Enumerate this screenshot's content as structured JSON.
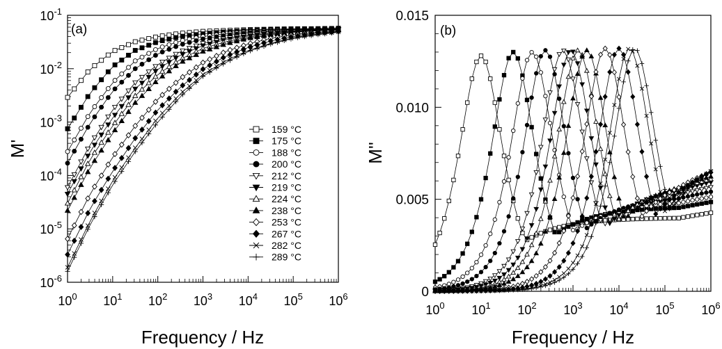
{
  "chart_data": [
    {
      "panel_label": "(a)",
      "type": "line",
      "title": "",
      "xlabel": "Frequency / Hz",
      "ylabel": "M'",
      "xscale": "log",
      "yscale": "log",
      "xlim": [
        1,
        1000000
      ],
      "ylim": [
        1e-06,
        0.1
      ],
      "x_ticks": [
        {
          "value": 1,
          "base": "10",
          "exp": "0"
        },
        {
          "value": 10,
          "base": "10",
          "exp": "1"
        },
        {
          "value": 100,
          "base": "10",
          "exp": "2"
        },
        {
          "value": 1000,
          "base": "10",
          "exp": "3"
        },
        {
          "value": 10000,
          "base": "10",
          "exp": "4"
        },
        {
          "value": 100000,
          "base": "10",
          "exp": "5"
        },
        {
          "value": 1000000,
          "base": "10",
          "exp": "6"
        }
      ],
      "y_ticks": [
        {
          "value": 1e-06,
          "base": "10",
          "exp": "-6"
        },
        {
          "value": 1e-05,
          "base": "10",
          "exp": "-5"
        },
        {
          "value": 0.0001,
          "base": "10",
          "exp": "-4"
        },
        {
          "value": 0.001,
          "base": "10",
          "exp": "-3"
        },
        {
          "value": 0.01,
          "base": "10",
          "exp": "-2"
        },
        {
          "value": 0.1,
          "base": "10",
          "exp": "-1"
        }
      ],
      "legend_position": "right",
      "x": [
        1,
        3.16,
        10,
        31.6,
        100,
        316,
        1000,
        3162,
        10000,
        31623,
        100000,
        316228,
        1000000
      ],
      "series": [
        {
          "name": "159 °C",
          "marker": "square-open",
          "values": [
            0.0029,
            0.0098,
            0.021,
            0.032,
            0.04,
            0.046,
            0.05,
            0.052,
            0.054,
            0.055,
            0.056,
            0.056,
            0.057
          ]
        },
        {
          "name": "175 °C",
          "marker": "square-filled",
          "values": [
            0.00075,
            0.0035,
            0.011,
            0.022,
            0.032,
            0.04,
            0.045,
            0.049,
            0.052,
            0.054,
            0.055,
            0.056,
            0.057
          ]
        },
        {
          "name": "188 °C",
          "marker": "circle-open",
          "values": [
            0.00028,
            0.0015,
            0.0055,
            0.014,
            0.024,
            0.033,
            0.04,
            0.045,
            0.049,
            0.052,
            0.054,
            0.055,
            0.056
          ]
        },
        {
          "name": "200 °C",
          "marker": "circle-filled",
          "values": [
            0.00017,
            0.00095,
            0.0038,
            0.01,
            0.019,
            0.028,
            0.036,
            0.042,
            0.047,
            0.05,
            0.053,
            0.054,
            0.055
          ]
        },
        {
          "name": "212 °C",
          "marker": "tri-down-open",
          "values": [
            6e-05,
            0.00038,
            0.0017,
            0.0055,
            0.012,
            0.021,
            0.03,
            0.037,
            0.043,
            0.048,
            0.051,
            0.053,
            0.055
          ]
        },
        {
          "name": "219 °C",
          "marker": "tri-down-filled",
          "values": [
            4.5e-05,
            0.00028,
            0.0012,
            0.0042,
            0.0098,
            0.018,
            0.027,
            0.035,
            0.041,
            0.046,
            0.05,
            0.052,
            0.054
          ]
        },
        {
          "name": "224 °C",
          "marker": "tri-up-open",
          "values": [
            3e-05,
            0.0002,
            0.00085,
            0.0031,
            0.0078,
            0.015,
            0.024,
            0.032,
            0.039,
            0.045,
            0.049,
            0.052,
            0.054
          ]
        },
        {
          "name": "238 °C",
          "marker": "tri-up-filled",
          "values": [
            2.2e-05,
            0.00014,
            0.00062,
            0.0023,
            0.0062,
            0.013,
            0.021,
            0.029,
            0.037,
            0.043,
            0.048,
            0.051,
            0.053
          ]
        },
        {
          "name": "253 °C",
          "marker": "diamond-open",
          "values": [
            6.5e-06,
            4.5e-05,
            0.00022,
            0.00085,
            0.0027,
            0.0065,
            0.013,
            0.021,
            0.029,
            0.037,
            0.043,
            0.048,
            0.051
          ]
        },
        {
          "name": "267 °C",
          "marker": "diamond-filled",
          "values": [
            3.3e-06,
            2.4e-05,
            0.00012,
            0.0005,
            0.0017,
            0.0045,
            0.0098,
            0.017,
            0.025,
            0.033,
            0.04,
            0.046,
            0.05
          ]
        },
        {
          "name": "282 °C",
          "marker": "cross",
          "values": [
            1.9e-06,
            1.4e-05,
            8e-05,
            0.00033,
            0.0012,
            0.0034,
            0.0078,
            0.014,
            0.022,
            0.03,
            0.038,
            0.044,
            0.049
          ]
        },
        {
          "name": "289 °C",
          "marker": "plus",
          "values": [
            1.6e-06,
            1.2e-05,
            6.7e-05,
            0.00028,
            0.001,
            0.003,
            0.0072,
            0.013,
            0.021,
            0.029,
            0.037,
            0.043,
            0.048
          ]
        }
      ]
    },
    {
      "panel_label": "(b)",
      "type": "line",
      "title": "",
      "xlabel": "Frequency / Hz",
      "ylabel": "M''",
      "xscale": "log",
      "yscale": "linear",
      "xlim": [
        1,
        1000000
      ],
      "ylim": [
        0,
        0.015
      ],
      "x_ticks": [
        {
          "value": 1,
          "base": "10",
          "exp": "0"
        },
        {
          "value": 10,
          "base": "10",
          "exp": "1"
        },
        {
          "value": 100,
          "base": "10",
          "exp": "2"
        },
        {
          "value": 1000,
          "base": "10",
          "exp": "3"
        },
        {
          "value": 10000,
          "base": "10",
          "exp": "4"
        },
        {
          "value": 100000,
          "base": "10",
          "exp": "5"
        },
        {
          "value": 1000000,
          "base": "10",
          "exp": "6"
        }
      ],
      "y_ticks": [
        {
          "value": 0,
          "label": "0"
        },
        {
          "value": 0.005,
          "label": "0.005"
        },
        {
          "value": 0.01,
          "label": "0.010"
        },
        {
          "value": 0.015,
          "label": "0.015"
        }
      ],
      "series": [
        {
          "name": "159 °C",
          "marker": "square-open",
          "peak_f": 10,
          "peak_m": 0.0128,
          "hf_base": 0.004
        },
        {
          "name": "175 °C",
          "marker": "square-filled",
          "peak_f": 50,
          "peak_m": 0.013,
          "hf_base": 0.0046
        },
        {
          "name": "188 °C",
          "marker": "circle-open",
          "peak_f": 130,
          "peak_m": 0.013,
          "hf_base": 0.0049
        },
        {
          "name": "200 °C",
          "marker": "circle-filled",
          "peak_f": 250,
          "peak_m": 0.0131,
          "hf_base": 0.0052
        },
        {
          "name": "212 °C",
          "marker": "tri-down-open",
          "peak_f": 600,
          "peak_m": 0.0131,
          "hf_base": 0.0055
        },
        {
          "name": "219 °C",
          "marker": "tri-down-filled",
          "peak_f": 900,
          "peak_m": 0.0131,
          "hf_base": 0.0058
        },
        {
          "name": "224 °C",
          "marker": "tri-up-open",
          "peak_f": 1300,
          "peak_m": 0.0131,
          "hf_base": 0.006
        },
        {
          "name": "238 °C",
          "marker": "tri-up-filled",
          "peak_f": 2000,
          "peak_m": 0.0131,
          "hf_base": 0.0062
        },
        {
          "name": "253 °C",
          "marker": "diamond-open",
          "peak_f": 5000,
          "peak_m": 0.0132,
          "hf_base": 0.0066
        },
        {
          "name": "267 °C",
          "marker": "diamond-filled",
          "peak_f": 10000,
          "peak_m": 0.0132,
          "hf_base": 0.0068
        },
        {
          "name": "282 °C",
          "marker": "cross",
          "peak_f": 17000,
          "peak_m": 0.0132,
          "hf_base": 0.0071
        },
        {
          "name": "289 °C",
          "marker": "plus",
          "peak_f": 22000,
          "peak_m": 0.0132,
          "hf_base": 0.0073
        }
      ]
    }
  ]
}
